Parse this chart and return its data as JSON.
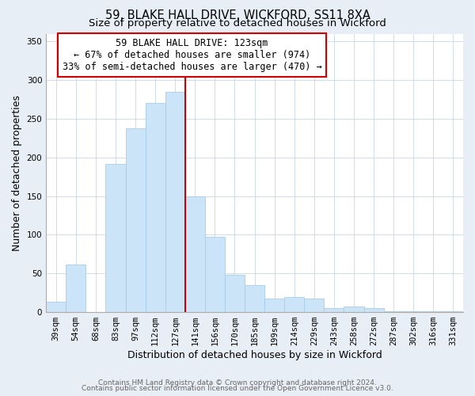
{
  "title1": "59, BLAKE HALL DRIVE, WICKFORD, SS11 8XA",
  "title2": "Size of property relative to detached houses in Wickford",
  "xlabel": "Distribution of detached houses by size in Wickford",
  "ylabel": "Number of detached properties",
  "categories": [
    "39sqm",
    "54sqm",
    "68sqm",
    "83sqm",
    "97sqm",
    "112sqm",
    "127sqm",
    "141sqm",
    "156sqm",
    "170sqm",
    "185sqm",
    "199sqm",
    "214sqm",
    "229sqm",
    "243sqm",
    "258sqm",
    "272sqm",
    "287sqm",
    "302sqm",
    "316sqm",
    "331sqm"
  ],
  "values": [
    13,
    62,
    0,
    192,
    238,
    270,
    285,
    150,
    97,
    48,
    35,
    18,
    20,
    18,
    5,
    7,
    5,
    1,
    1,
    1,
    1
  ],
  "bar_color": "#cce4f7",
  "bar_edgecolor": "#a8cce8",
  "annotation_box_text": "59 BLAKE HALL DRIVE: 123sqm\n← 67% of detached houses are smaller (974)\n33% of semi-detached houses are larger (470) →",
  "vline_color": "#cc0000",
  "annotation_box_edgecolor": "#cc0000",
  "vline_x": 6.5,
  "footer1": "Contains HM Land Registry data © Crown copyright and database right 2024.",
  "footer2": "Contains public sector information licensed under the Open Government Licence v3.0.",
  "ylim": [
    0,
    360
  ],
  "yticks": [
    0,
    50,
    100,
    150,
    200,
    250,
    300,
    350
  ],
  "bg_color": "#e8eef5",
  "plot_bg_color": "#ffffff",
  "title_fontsize": 10.5,
  "subtitle_fontsize": 9.5,
  "axis_label_fontsize": 9,
  "tick_fontsize": 7.5,
  "footer_fontsize": 6.5,
  "ann_fontsize": 8.5
}
